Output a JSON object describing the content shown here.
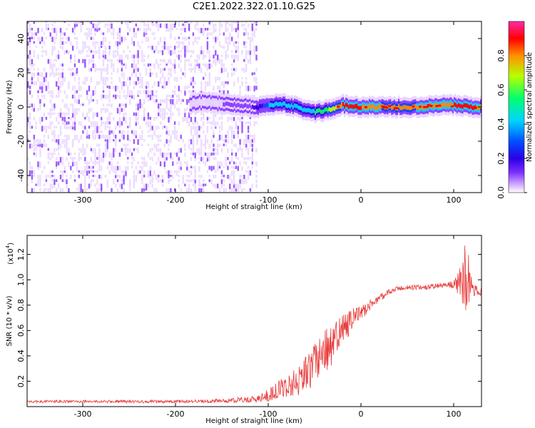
{
  "title": "C2E1.2022.322.01.10.G25",
  "chart_data": [
    {
      "type": "heatmap",
      "xlabel": "Height of straight line (km)",
      "ylabel": "Frequency (Hz)",
      "colorbar_label": "Normalized spectral amplitude",
      "xlim": [
        -360,
        130
      ],
      "ylim": [
        -50,
        50
      ],
      "xticks": [
        -300,
        -200,
        -100,
        0,
        100
      ],
      "yticks": [
        -40,
        -20,
        0,
        20,
        40
      ],
      "colorbar_range": [
        0.0,
        1.0
      ],
      "colorbar_ticks": [
        "0.0",
        "0.2",
        "0.4",
        "0.6",
        "0.8"
      ],
      "colorbar_tick_values": [
        0.0,
        0.2,
        0.4,
        0.6,
        0.8
      ],
      "colormap": [
        "#ffffff",
        "#e9d6ff",
        "#8a3dff",
        "#3a00e0",
        "#0046ff",
        "#00d2ff",
        "#00ff66",
        "#c8ff00",
        "#ff8a00",
        "#ff0000",
        "#ff2ea6"
      ],
      "noise_region_x": [
        -360,
        -112
      ],
      "signal_line": {
        "x": [
          -185,
          -170,
          -150,
          -130,
          -110,
          -100,
          -90,
          -80,
          -70,
          -60,
          -50,
          -40,
          -30,
          -20,
          -10,
          0,
          20,
          40,
          60,
          80,
          100,
          120,
          130
        ],
        "y": [
          2,
          3,
          2,
          1,
          0,
          1,
          2,
          1,
          0,
          -2,
          -3,
          -2,
          -1,
          1,
          0,
          0,
          0,
          0,
          0,
          1,
          1,
          0,
          0
        ],
        "amplitude": [
          0.12,
          0.14,
          0.15,
          0.17,
          0.3,
          0.45,
          0.5,
          0.5,
          0.52,
          0.5,
          0.55,
          0.62,
          0.7,
          0.85,
          0.85,
          0.85,
          0.82,
          0.8,
          0.82,
          0.82,
          0.85,
          0.88,
          0.8
        ]
      }
    },
    {
      "type": "line",
      "xlabel": "Height of straight line (km)",
      "ylabel": "SNR (10 * v/v)",
      "y_multiplier": "(x10",
      "y_multiplier_exp": "4",
      "y_multiplier_close": ")",
      "xlim": [
        -360,
        130
      ],
      "ylim": [
        0,
        1.35
      ],
      "xticks": [
        -300,
        -200,
        -100,
        0,
        100
      ],
      "yticks": [
        0.2,
        0.4,
        0.6,
        0.8,
        1.0,
        1.2
      ],
      "ytick_labels": [
        "0.2",
        "0.4",
        "0.6",
        "0.8",
        "1.0",
        "1.2"
      ],
      "color": "#e83a3a",
      "series": [
        {
          "x": [
            -360,
            -300,
            -250,
            -200,
            -150,
            -110,
            -100,
            -90,
            -80,
            -70,
            -60,
            -50,
            -40,
            -30,
            -20,
            -10,
            0,
            10,
            20,
            30,
            40,
            50,
            60,
            70,
            80,
            90,
            100,
            110,
            115,
            120,
            130
          ],
          "y": [
            0.04,
            0.04,
            0.04,
            0.04,
            0.045,
            0.06,
            0.09,
            0.13,
            0.16,
            0.2,
            0.25,
            0.33,
            0.42,
            0.5,
            0.6,
            0.68,
            0.74,
            0.8,
            0.86,
            0.9,
            0.93,
            0.94,
            0.94,
            0.94,
            0.95,
            0.96,
            0.96,
            0.97,
            0.98,
            0.92,
            0.9
          ],
          "noise": [
            0.01,
            0.01,
            0.012,
            0.012,
            0.015,
            0.03,
            0.05,
            0.07,
            0.09,
            0.12,
            0.15,
            0.17,
            0.18,
            0.16,
            0.12,
            0.09,
            0.06,
            0.04,
            0.03,
            0.025,
            0.02,
            0.02,
            0.02,
            0.02,
            0.02,
            0.02,
            0.03,
            0.2,
            0.3,
            0.05,
            0.03
          ]
        }
      ]
    }
  ]
}
